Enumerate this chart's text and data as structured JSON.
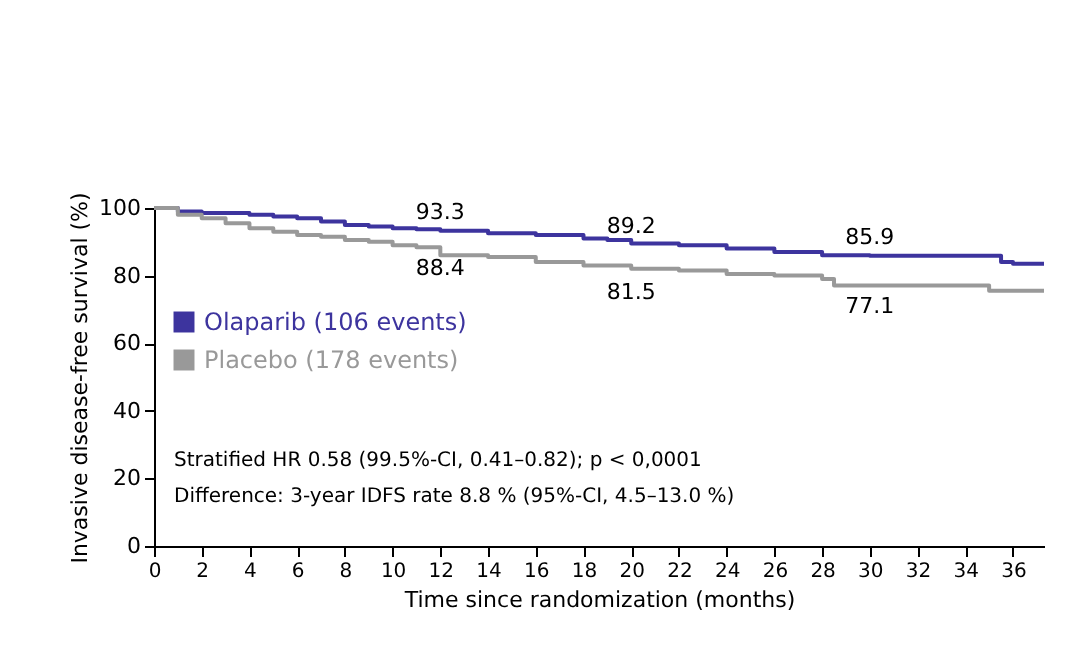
{
  "chart_data": {
    "type": "step",
    "xlabel": "Time since randomization (months)",
    "ylabel": "Invasive disease-free survival (%)",
    "xlim": [
      0,
      37.3
    ],
    "xticks": [
      0,
      2,
      4,
      6,
      8,
      10,
      12,
      14,
      16,
      18,
      20,
      22,
      24,
      26,
      28,
      30,
      32,
      34,
      36
    ],
    "ylim": [
      0,
      100
    ],
    "yticks": [
      0,
      20,
      40,
      60,
      80,
      100
    ],
    "grid": false,
    "legend": "left",
    "marker": "none",
    "series": [
      {
        "name": "Olaparib (106 events)",
        "color": "#3d349e",
        "x": [
          0,
          1,
          2,
          4,
          5,
          6,
          7,
          8,
          9,
          10,
          11,
          12,
          14,
          16,
          18,
          19,
          20,
          22,
          24,
          26,
          28,
          30,
          32,
          34,
          35.5,
          36,
          37.3
        ],
        "values": [
          100,
          99,
          98.5,
          98,
          97.5,
          97,
          96,
          95,
          94.5,
          94,
          93.7,
          93.3,
          92.5,
          92,
          91,
          90.5,
          89.5,
          89,
          88,
          87,
          86,
          85.9,
          85.9,
          85.9,
          84,
          83.5,
          83.5
        ]
      },
      {
        "name": "Placebo (178 events)",
        "color": "#999999",
        "x": [
          0,
          1,
          2,
          3,
          4,
          5,
          6,
          7,
          8,
          9,
          10,
          11,
          12,
          14,
          16,
          18,
          20,
          22,
          24,
          26,
          28,
          28.5,
          30,
          34,
          35,
          37.3
        ],
        "values": [
          100,
          98,
          97,
          95.5,
          94,
          93,
          92,
          91.5,
          90.5,
          90,
          89,
          88.4,
          86,
          85.5,
          84,
          83,
          82,
          81.5,
          80.5,
          80,
          79,
          77.1,
          77.1,
          77.1,
          75.5,
          75.5
        ]
      }
    ],
    "annotations": [
      {
        "text": "93.3",
        "x": 12,
        "y": 93.3
      },
      {
        "text": "89.2",
        "x": 20,
        "y": 89.2
      },
      {
        "text": "85.9",
        "x": 30,
        "y": 85.9
      },
      {
        "text": "88.4",
        "x": 12,
        "y": 88.4
      },
      {
        "text": "81.5",
        "x": 20,
        "y": 81.5
      },
      {
        "text": "77.1",
        "x": 30,
        "y": 77.1
      },
      "Stratified HR 0.58 (99.5%-CI, 0.41–0.82); p < 0,0001",
      "Difference: 3-year IDFS rate 8.8 % (95%-CI, 4.5–13.0 %)"
    ]
  }
}
